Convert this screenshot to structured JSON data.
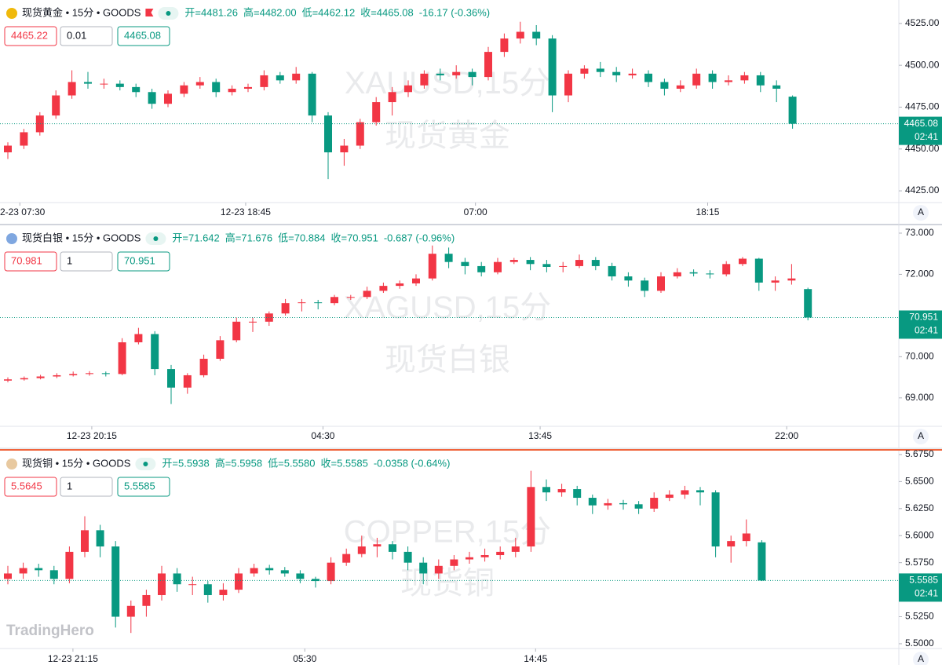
{
  "logo": "TradingHero",
  "chart_data": [
    {
      "type": "candlestick",
      "icon_color": "#f0b90b",
      "flag": true,
      "up_color": "#f23645",
      "down_color": "#089981",
      "header": {
        "title": "现货黄金 • 15分 • GOODS",
        "open": "开=4481.26",
        "high": "高=4482.00",
        "low": "低=4462.12",
        "close": "收=4465.08",
        "change": "-16.17 (-0.36%)"
      },
      "buttons": [
        "4465.22",
        "0.01",
        "4465.08"
      ],
      "watermark": [
        "XAUUSD,15分",
        "现货黄金"
      ],
      "countdown": "02:41",
      "auto_button": "A",
      "ylim": [
        4418,
        4539
      ],
      "yticks": [
        {
          "value": 4425,
          "label": "4425.00"
        },
        {
          "value": 4450,
          "label": "4450.00"
        },
        {
          "value": 4475,
          "label": "4475.00"
        },
        {
          "value": 4500,
          "label": "4500.00"
        },
        {
          "value": 4525,
          "label": "4525.00"
        }
      ],
      "xticks": [
        {
          "value": 0.75,
          "label": "12-23 07:30"
        },
        {
          "value": 14.85,
          "label": "12-23 18:45"
        },
        {
          "value": 29.2,
          "label": "07:00"
        },
        {
          "value": 43.7,
          "label": "18:15"
        }
      ],
      "candles": [
        [
          4448,
          4454,
          4444,
          4452
        ],
        [
          4452,
          4462,
          4450,
          4460
        ],
        [
          4460,
          4472,
          4458,
          4470
        ],
        [
          4470,
          4485,
          4468,
          4482
        ],
        [
          4482,
          4497,
          4480,
          4490
        ],
        [
          4490,
          4496,
          4486,
          4489
        ],
        [
          4489,
          4492,
          4486,
          4489
        ],
        [
          4489,
          4491,
          4485,
          4487
        ],
        [
          4487,
          4489,
          4481,
          4484
        ],
        [
          4484,
          4486,
          4474,
          4477
        ],
        [
          4477,
          4485,
          4475,
          4483
        ],
        [
          4483,
          4490,
          4481,
          4488
        ],
        [
          4488,
          4493,
          4486,
          4490
        ],
        [
          4490,
          4492,
          4481,
          4484
        ],
        [
          4484,
          4488,
          4482,
          4486
        ],
        [
          4486,
          4489,
          4484,
          4487
        ],
        [
          4487,
          4497,
          4485,
          4494
        ],
        [
          4494,
          4496,
          4489,
          4491
        ],
        [
          4491,
          4499,
          4489,
          4495
        ],
        [
          4495,
          4496,
          4466,
          4470
        ],
        [
          4470,
          4472,
          4432,
          4448
        ],
        [
          4448,
          4456,
          4440,
          4452
        ],
        [
          4452,
          4468,
          4450,
          4466
        ],
        [
          4466,
          4481,
          4464,
          4478
        ],
        [
          4478,
          4487,
          4470,
          4484
        ],
        [
          4484,
          4491,
          4481,
          4488
        ],
        [
          4488,
          4497,
          4486,
          4495
        ],
        [
          4495,
          4498,
          4491,
          4494
        ],
        [
          4494,
          4500,
          4492,
          4496
        ],
        [
          4496,
          4498,
          4488,
          4493
        ],
        [
          4493,
          4511,
          4491,
          4508
        ],
        [
          4508,
          4519,
          4505,
          4516
        ],
        [
          4516,
          4526,
          4513,
          4520
        ],
        [
          4520,
          4524,
          4512,
          4516
        ],
        [
          4516,
          4518,
          4472,
          4482
        ],
        [
          4482,
          4497,
          4478,
          4495
        ],
        [
          4495,
          4500,
          4492,
          4498
        ],
        [
          4498,
          4502,
          4493,
          4496
        ],
        [
          4496,
          4499,
          4490,
          4494
        ],
        [
          4494,
          4498,
          4492,
          4495
        ],
        [
          4495,
          4497,
          4487,
          4490
        ],
        [
          4490,
          4492,
          4482,
          4486
        ],
        [
          4486,
          4491,
          4484,
          4488
        ],
        [
          4488,
          4498,
          4486,
          4495
        ],
        [
          4495,
          4497,
          4486,
          4490
        ],
        [
          4490,
          4494,
          4488,
          4491
        ],
        [
          4491,
          4496,
          4489,
          4494
        ],
        [
          4494,
          4496,
          4484,
          4488
        ],
        [
          4488,
          4491,
          4478,
          4486
        ],
        [
          4481.26,
          4482,
          4462.12,
          4465.08
        ]
      ]
    },
    {
      "type": "candlestick",
      "icon_color": "#7fa7e0",
      "flag": false,
      "up_color": "#f23645",
      "down_color": "#089981",
      "header": {
        "title": "现货白银 • 15分 • GOODS",
        "open": "开=71.642",
        "high": "高=71.676",
        "low": "低=70.884",
        "close": "收=70.951",
        "change": "-0.687 (-0.96%)"
      },
      "buttons": [
        "70.981",
        "1",
        "70.951"
      ],
      "watermark": [
        "XAGUSD,15分",
        "现货白银"
      ],
      "countdown": "02:41",
      "auto_button": "A",
      "ylim": [
        68.31,
        73.19
      ],
      "yticks": [
        {
          "value": 69,
          "label": "69.000"
        },
        {
          "value": 70,
          "label": "70.000"
        },
        {
          "value": 72,
          "label": "72.000"
        },
        {
          "value": 73,
          "label": "73.000"
        }
      ],
      "xticks": [
        {
          "value": 5.14,
          "label": "12-23 20:15"
        },
        {
          "value": 19.3,
          "label": "04:30"
        },
        {
          "value": 32.6,
          "label": "13:45"
        },
        {
          "value": 47.7,
          "label": "22:00"
        }
      ],
      "candles": [
        [
          69.42,
          69.5,
          69.38,
          69.45
        ],
        [
          69.45,
          69.52,
          69.42,
          69.48
        ],
        [
          69.48,
          69.56,
          69.45,
          69.52
        ],
        [
          69.52,
          69.6,
          69.48,
          69.55
        ],
        [
          69.55,
          69.64,
          69.52,
          69.58
        ],
        [
          69.58,
          69.65,
          69.54,
          69.6
        ],
        [
          69.6,
          69.64,
          69.52,
          69.58
        ],
        [
          69.58,
          70.45,
          69.55,
          70.35
        ],
        [
          70.35,
          70.7,
          70.3,
          70.55
        ],
        [
          70.55,
          70.62,
          69.55,
          69.7
        ],
        [
          69.7,
          69.8,
          68.85,
          69.25
        ],
        [
          69.25,
          69.6,
          69.1,
          69.55
        ],
        [
          69.55,
          70.05,
          69.5,
          69.95
        ],
        [
          69.95,
          70.5,
          69.9,
          70.4
        ],
        [
          70.4,
          70.95,
          70.35,
          70.85
        ],
        [
          70.85,
          70.95,
          70.6,
          70.85
        ],
        [
          70.85,
          71.1,
          70.75,
          71.05
        ],
        [
          71.05,
          71.4,
          71.0,
          71.3
        ],
        [
          71.3,
          71.4,
          71.1,
          71.32
        ],
        [
          71.32,
          71.38,
          71.15,
          71.3
        ],
        [
          71.3,
          71.5,
          71.25,
          71.45
        ],
        [
          71.45,
          71.5,
          71.38,
          71.45
        ],
        [
          71.45,
          71.7,
          71.4,
          71.6
        ],
        [
          71.6,
          71.8,
          71.55,
          71.72
        ],
        [
          71.72,
          71.85,
          71.65,
          71.78
        ],
        [
          71.78,
          72.0,
          71.72,
          71.9
        ],
        [
          71.9,
          72.7,
          71.85,
          72.5
        ],
        [
          72.5,
          72.65,
          72.15,
          72.3
        ],
        [
          72.3,
          72.4,
          72.0,
          72.2
        ],
        [
          72.2,
          72.3,
          71.95,
          72.05
        ],
        [
          72.05,
          72.4,
          72.0,
          72.3
        ],
        [
          72.3,
          72.4,
          72.25,
          72.35
        ],
        [
          72.35,
          72.42,
          72.1,
          72.25
        ],
        [
          72.25,
          72.35,
          72.05,
          72.18
        ],
        [
          72.18,
          72.3,
          72.05,
          72.2
        ],
        [
          72.2,
          72.48,
          72.15,
          72.35
        ],
        [
          72.35,
          72.42,
          72.1,
          72.2
        ],
        [
          72.2,
          72.28,
          71.85,
          71.95
        ],
        [
          71.95,
          72.05,
          71.7,
          71.85
        ],
        [
          71.85,
          71.92,
          71.45,
          71.6
        ],
        [
          71.6,
          72.05,
          71.55,
          71.95
        ],
        [
          71.95,
          72.15,
          71.9,
          72.05
        ],
        [
          72.05,
          72.12,
          71.95,
          72.02
        ],
        [
          72.02,
          72.1,
          71.9,
          72.0
        ],
        [
          72.0,
          72.32,
          71.95,
          72.25
        ],
        [
          72.25,
          72.42,
          72.2,
          72.38
        ],
        [
          72.38,
          72.4,
          71.6,
          71.8
        ],
        [
          71.8,
          71.95,
          71.6,
          71.85
        ],
        [
          71.85,
          72.25,
          71.75,
          71.9
        ],
        [
          71.642,
          71.676,
          70.884,
          70.951
        ]
      ]
    },
    {
      "type": "candlestick",
      "icon_color": "#e8c9a0",
      "flag": false,
      "up_color": "#f23645",
      "down_color": "#089981",
      "header": {
        "title": "现货铜 • 15分 • GOODS",
        "open": "开=5.5938",
        "high": "高=5.5958",
        "low": "低=5.5580",
        "close": "收=5.5585",
        "change": "-0.0358 (-0.64%)"
      },
      "buttons": [
        "5.5645",
        "1",
        "5.5585"
      ],
      "watermark": [
        "COPPER,15分",
        "现货铜"
      ],
      "countdown": "02:41",
      "auto_button": "A",
      "ylim": [
        5.4956,
        5.6786
      ],
      "yticks": [
        {
          "value": 5.5,
          "label": "5.5000"
        },
        {
          "value": 5.525,
          "label": "5.5250"
        },
        {
          "value": 5.575,
          "label": "5.5750"
        },
        {
          "value": 5.6,
          "label": "5.6000"
        },
        {
          "value": 5.625,
          "label": "5.6250"
        },
        {
          "value": 5.65,
          "label": "5.6500"
        },
        {
          "value": 5.675,
          "label": "5.6750"
        }
      ],
      "xticks": [
        {
          "value": 4.23,
          "label": "12-23 21:15"
        },
        {
          "value": 19.3,
          "label": "05:30"
        },
        {
          "value": 34.3,
          "label": "14:45"
        }
      ],
      "candles": [
        [
          5.56,
          5.572,
          5.555,
          5.565
        ],
        [
          5.565,
          5.575,
          5.56,
          5.57
        ],
        [
          5.57,
          5.574,
          5.562,
          5.568
        ],
        [
          5.568,
          5.572,
          5.555,
          5.56
        ],
        [
          5.56,
          5.59,
          5.556,
          5.585
        ],
        [
          5.585,
          5.618,
          5.58,
          5.605
        ],
        [
          5.605,
          5.61,
          5.58,
          5.59
        ],
        [
          5.59,
          5.595,
          5.515,
          5.525
        ],
        [
          5.525,
          5.54,
          5.51,
          5.535
        ],
        [
          5.535,
          5.55,
          5.525,
          5.545
        ],
        [
          5.545,
          5.572,
          5.54,
          5.565
        ],
        [
          5.565,
          5.57,
          5.548,
          5.555
        ],
        [
          5.555,
          5.562,
          5.545,
          5.555
        ],
        [
          5.555,
          5.558,
          5.538,
          5.545
        ],
        [
          5.545,
          5.556,
          5.54,
          5.55
        ],
        [
          5.55,
          5.57,
          5.547,
          5.565
        ],
        [
          5.565,
          5.574,
          5.562,
          5.57
        ],
        [
          5.57,
          5.573,
          5.564,
          5.568
        ],
        [
          5.568,
          5.571,
          5.562,
          5.565
        ],
        [
          5.565,
          5.568,
          5.556,
          5.56
        ],
        [
          5.56,
          5.562,
          5.552,
          5.558
        ],
        [
          5.558,
          5.58,
          5.555,
          5.575
        ],
        [
          5.575,
          5.588,
          5.572,
          5.583
        ],
        [
          5.583,
          5.6,
          5.58,
          5.59
        ],
        [
          5.59,
          5.598,
          5.58,
          5.592
        ],
        [
          5.592,
          5.595,
          5.578,
          5.585
        ],
        [
          5.585,
          5.59,
          5.568,
          5.575
        ],
        [
          5.575,
          5.58,
          5.555,
          5.565
        ],
        [
          5.565,
          5.578,
          5.56,
          5.572
        ],
        [
          5.572,
          5.582,
          5.568,
          5.578
        ],
        [
          5.578,
          5.585,
          5.574,
          5.58
        ],
        [
          5.58,
          5.588,
          5.576,
          5.582
        ],
        [
          5.582,
          5.59,
          5.578,
          5.585
        ],
        [
          5.585,
          5.598,
          5.58,
          5.59
        ],
        [
          5.59,
          5.66,
          5.585,
          5.645
        ],
        [
          5.645,
          5.652,
          5.632,
          5.64
        ],
        [
          5.64,
          5.648,
          5.636,
          5.643
        ],
        [
          5.643,
          5.646,
          5.628,
          5.635
        ],
        [
          5.635,
          5.638,
          5.62,
          5.628
        ],
        [
          5.628,
          5.634,
          5.624,
          5.63
        ],
        [
          5.63,
          5.633,
          5.624,
          5.629
        ],
        [
          5.629,
          5.632,
          5.62,
          5.625
        ],
        [
          5.625,
          5.64,
          5.622,
          5.635
        ],
        [
          5.635,
          5.642,
          5.632,
          5.638
        ],
        [
          5.638,
          5.646,
          5.634,
          5.642
        ],
        [
          5.642,
          5.645,
          5.628,
          5.64
        ],
        [
          5.64,
          5.642,
          5.58,
          5.59
        ],
        [
          5.59,
          5.6,
          5.575,
          5.595
        ],
        [
          5.595,
          5.615,
          5.59,
          5.602
        ],
        [
          5.5938,
          5.5958,
          5.558,
          5.5585
        ]
      ]
    }
  ]
}
